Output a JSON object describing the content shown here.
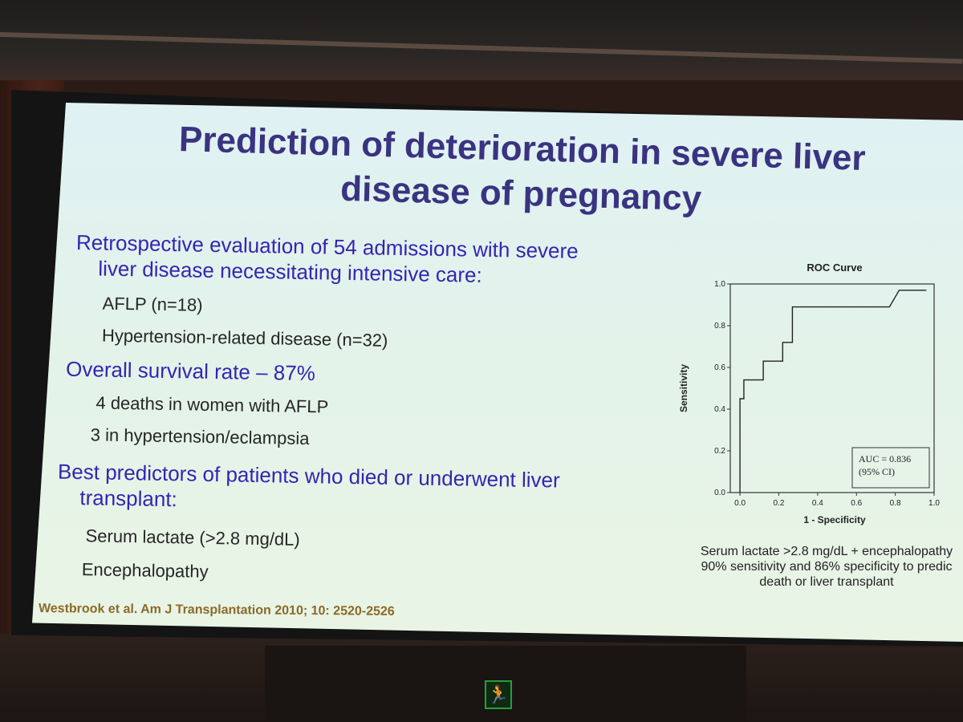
{
  "slide": {
    "title_lines": [
      "Prediction of deterioration in severe liver",
      "disease of pregnancy"
    ],
    "bullet1_lines": [
      "Retrospective evaluation of 54 admissions with severe",
      "liver disease necessitating intensive care:"
    ],
    "sub1a": "AFLP (n=18)",
    "sub1b": "Hypertension-related disease (n=32)",
    "bullet2": "Overall survival rate – 87%",
    "sub2a": "4 deaths in women with AFLP",
    "sub2b": "3 in hypertension/eclampsia",
    "bullet3_lines": [
      "Best predictors of patients who died or underwent liver",
      "transplant:"
    ],
    "sub3a": "Serum lactate (>2.8 mg/dL)",
    "sub3b": "Encephalopathy",
    "citation": "Westbrook et al. Am J Transplantation 2010; 10: 2520-2526",
    "caption_lines": [
      "Serum lactate >2.8 mg/dL + encephalopathy",
      "90% sensitivity and 86% specificity to predic",
      "death or liver transplant"
    ]
  },
  "chart_data": {
    "type": "line",
    "title": "ROC Curve",
    "xlabel": "1 - Specificity",
    "ylabel": "Sensitivity",
    "xlim": [
      -0.05,
      1.0
    ],
    "ylim": [
      0.0,
      1.0
    ],
    "x_ticks": [
      "0.0",
      "0.2",
      "0.4",
      "0.6",
      "0.8",
      "1.0"
    ],
    "y_ticks": [
      "0.0",
      "0.2",
      "0.4",
      "0.6",
      "0.8",
      "1.0"
    ],
    "x_tick_values": [
      0.0,
      0.2,
      0.4,
      0.6,
      0.8,
      1.0
    ],
    "y_tick_values": [
      0.0,
      0.2,
      0.4,
      0.6,
      0.8,
      1.0
    ],
    "grid": false,
    "series": [
      {
        "x": [
          0.0,
          0.0,
          0.02,
          0.02,
          0.12,
          0.12,
          0.22,
          0.22,
          0.27,
          0.27,
          0.77,
          0.82,
          0.96
        ],
        "y": [
          0.0,
          0.45,
          0.45,
          0.54,
          0.54,
          0.63,
          0.63,
          0.72,
          0.72,
          0.89,
          0.89,
          0.97,
          0.97
        ]
      }
    ],
    "annotation_lines": [
      "AUC = 0.836",
      "(95% CI)"
    ]
  },
  "colors": {
    "title": "#3a3380",
    "bullet": "#3426b0",
    "body_text": "#262626",
    "citation": "#8a6a2a",
    "slide_bg": "#e3f3ea",
    "exit_sign": "#3ee35b"
  }
}
